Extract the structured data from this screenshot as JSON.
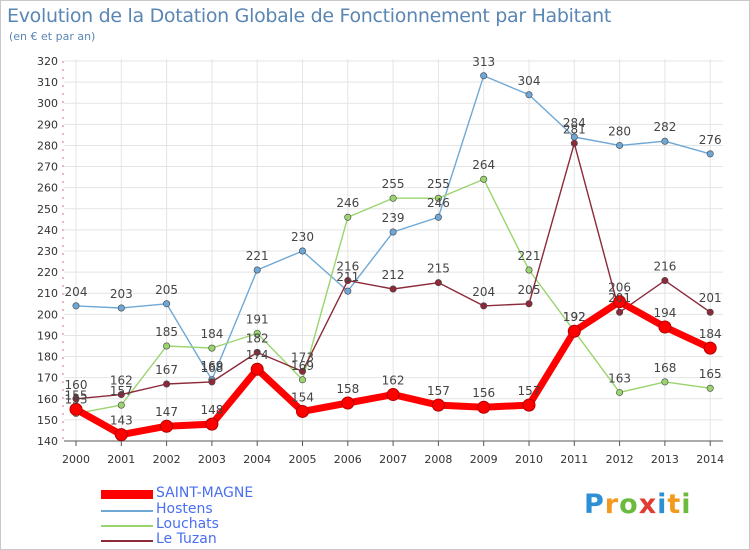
{
  "title": "Evolution de la Dotation Globale de Fonctionnement par Habitant",
  "subtitle": "(en € et par an)",
  "brand": {
    "text": "Proxiti",
    "letters": [
      {
        "ch": "P",
        "color": "#2f8fd4"
      },
      {
        "ch": "r",
        "color": "#f39a1e"
      },
      {
        "ch": "o",
        "color": "#6cbb3c"
      },
      {
        "ch": "x",
        "color": "#e03c31"
      },
      {
        "ch": "i",
        "color": "#2f8fd4"
      },
      {
        "ch": "t",
        "color": "#f39a1e"
      },
      {
        "ch": "i",
        "color": "#6cbb3c"
      }
    ]
  },
  "chart_data": {
    "type": "line",
    "title": "Evolution de la Dotation Globale de Fonctionnement par Habitant",
    "subtitle": "(en € et par an)",
    "x": [
      "2000",
      "2001",
      "2002",
      "2003",
      "2004",
      "2005",
      "2006",
      "2007",
      "2008",
      "2009",
      "2010",
      "2011",
      "2012",
      "2013",
      "2014"
    ],
    "ylim": [
      140,
      320
    ],
    "yticks": [
      140,
      150,
      160,
      170,
      180,
      190,
      200,
      210,
      220,
      230,
      240,
      250,
      260,
      270,
      280,
      290,
      300,
      310,
      320
    ],
    "grid": true,
    "legend": "bottom-left",
    "series": [
      {
        "name": "SAINT-MAGNE",
        "color": "#ff0000",
        "emphasis": true,
        "values": [
          155,
          143,
          147,
          148,
          174,
          154,
          158,
          162,
          157,
          156,
          157,
          192,
          206,
          194,
          184
        ],
        "labels": [
          "155",
          "143",
          "147",
          "148",
          "174",
          "154",
          "158",
          "162",
          "157",
          "156",
          "157",
          "192",
          "206",
          "194",
          "184"
        ]
      },
      {
        "name": "Hostens",
        "color": "#6fa8d6",
        "values": [
          204,
          203,
          205,
          169,
          221,
          230,
          211,
          239,
          246,
          313,
          304,
          284,
          280,
          282,
          276
        ],
        "labels": [
          "204",
          "203",
          "205",
          "169",
          "221",
          "230",
          "211",
          "239",
          "246",
          "313",
          "304",
          "284",
          "280",
          "282",
          "276"
        ]
      },
      {
        "name": "Louchats",
        "color": "#9ad46e",
        "values": [
          153,
          157,
          185,
          184,
          191,
          169,
          246,
          255,
          255,
          264,
          221,
          192,
          163,
          168,
          165
        ],
        "labels": [
          "153",
          "157",
          "185",
          "184",
          "191",
          "169",
          "246",
          "255",
          "255",
          "264",
          "221",
          "192",
          "163",
          "168",
          "165"
        ]
      },
      {
        "name": "Le Tuzan",
        "color": "#8c2a3a",
        "values": [
          160,
          162,
          167,
          168,
          182,
          173,
          216,
          212,
          215,
          204,
          205,
          281,
          201,
          216,
          201
        ],
        "labels": [
          "160",
          "162",
          "167",
          "168",
          "182",
          "173",
          "216",
          "212",
          "215",
          "204",
          "205",
          "281",
          "201",
          "216",
          "201"
        ]
      }
    ]
  }
}
